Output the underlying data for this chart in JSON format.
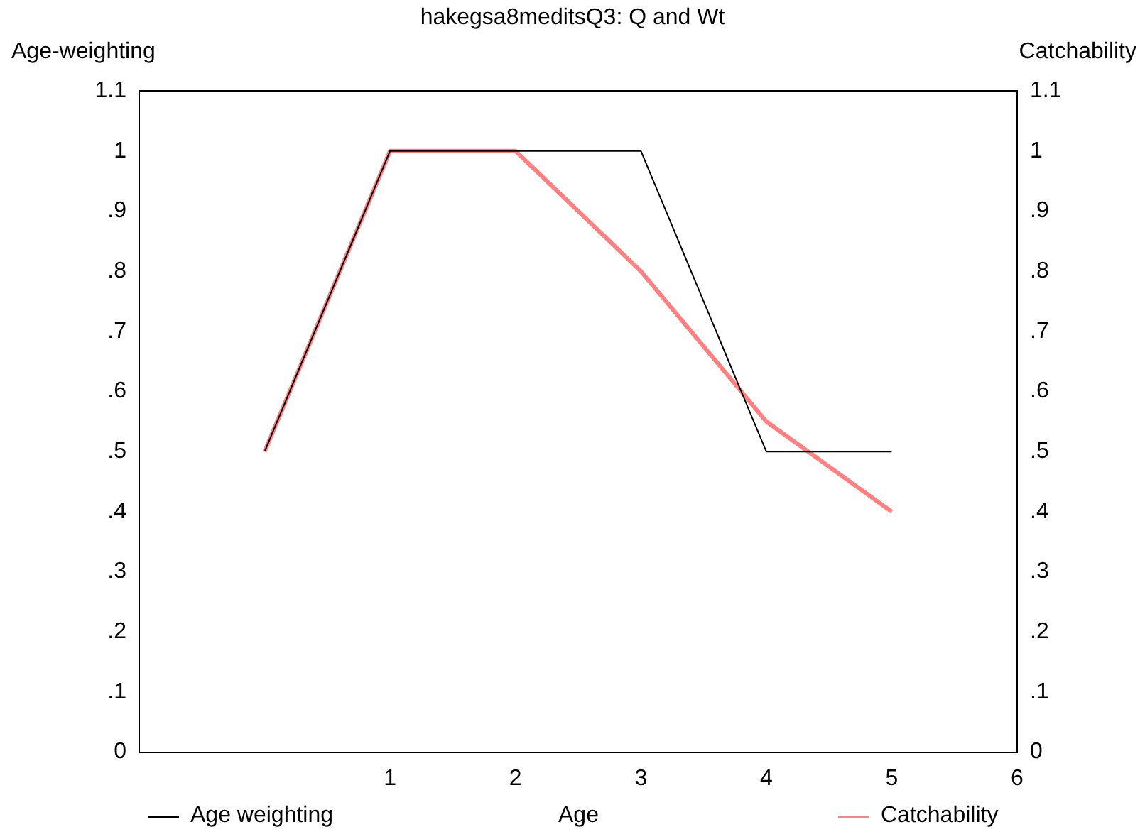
{
  "chart_data": {
    "type": "line",
    "title": "hakegsa8meditsQ3: Q and Wt",
    "xlabel": "Age",
    "ylabel": "Age-weighting",
    "y2label": "Catchability",
    "x": [
      0,
      1,
      2,
      3,
      4,
      5
    ],
    "series": [
      {
        "name": "Age weighting",
        "color": "#000000",
        "values": [
          0.5,
          1,
          1,
          1,
          0.5,
          0.5
        ]
      },
      {
        "name": "Catchability",
        "color": "#ff8080",
        "values": [
          0.5,
          1,
          1,
          0.8,
          0.55,
          0.4
        ],
        "axis": "y2"
      }
    ],
    "xlim": [
      -1,
      6
    ],
    "xticks": [
      1,
      2,
      3,
      4,
      5,
      6
    ],
    "ylim": [
      0,
      1.1
    ],
    "yticks": [
      0,
      {
        "value": 0.1,
        "label": ".1"
      },
      {
        "value": 0.2,
        "label": ".2"
      },
      {
        "value": 0.3,
        "label": ".3"
      },
      {
        "value": 0.4,
        "label": ".4"
      },
      {
        "value": 0.5,
        "label": ".5"
      },
      {
        "value": 0.6,
        "label": ".6"
      },
      {
        "value": 0.7,
        "label": ".7"
      },
      {
        "value": 0.8,
        "label": ".8"
      },
      {
        "value": 0.9,
        "label": ".9"
      },
      1,
      1.1
    ],
    "y2lim": [
      0,
      1.1
    ],
    "y2ticks": [
      0,
      {
        "value": 0.1,
        "label": ".1"
      },
      {
        "value": 0.2,
        "label": ".2"
      },
      {
        "value": 0.3,
        "label": ".3"
      },
      {
        "value": 0.4,
        "label": ".4"
      },
      {
        "value": 0.5,
        "label": ".5"
      },
      {
        "value": 0.6,
        "label": ".6"
      },
      {
        "value": 0.7,
        "label": ".7"
      },
      {
        "value": 0.8,
        "label": ".8"
      },
      {
        "value": 0.9,
        "label": ".9"
      },
      1,
      1.1
    ],
    "grid": false,
    "legend": "bottom",
    "marker": "none",
    "line_style": "solid"
  }
}
